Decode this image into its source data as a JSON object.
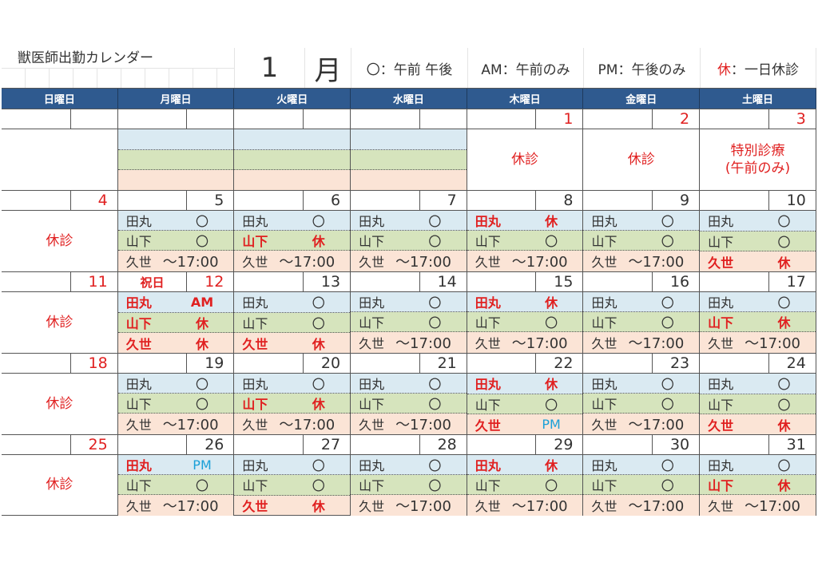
{
  "header": {
    "title": "獣医師出勤カレンダー",
    "month_number": "1",
    "month_label": "月",
    "legend": [
      {
        "text": "〇：午前 午後",
        "red_prefix": ""
      },
      {
        "text": "AM：午前のみ",
        "red_prefix": ""
      },
      {
        "text": "PM：午後のみ",
        "red_prefix": ""
      },
      {
        "text": "：一日休診",
        "red_prefix": "休"
      }
    ]
  },
  "weekdays": [
    "日曜日",
    "月曜日",
    "火曜日",
    "水曜日",
    "木曜日",
    "金曜日",
    "土曜日"
  ],
  "closed_label": "休診",
  "colors": {
    "header": "#2f5a8f",
    "red": "#e02020",
    "pm": "#1aa0d8"
  },
  "first_week": {
    "dates": [
      "",
      "",
      "",
      "",
      "1",
      "2",
      "3"
    ],
    "cells": [
      {
        "type": "blank"
      },
      {
        "type": "empty"
      },
      {
        "type": "empty"
      },
      {
        "type": "empty"
      },
      {
        "type": "closed",
        "text": "休診"
      },
      {
        "type": "closed",
        "text": "休診"
      },
      {
        "type": "closed",
        "text": "特別診療\n(午前のみ)"
      }
    ]
  },
  "weeks": [
    {
      "dates": [
        "4",
        "5",
        "6",
        "7",
        "8",
        "9",
        "10"
      ],
      "labels": [
        "",
        "",
        "",
        "",
        "",
        "",
        ""
      ],
      "days": [
        [
          [
            "田丸",
            "〇",
            ""
          ],
          [
            "山下",
            "〇",
            ""
          ],
          [
            "久世",
            "～17:00",
            ""
          ]
        ],
        [
          [
            "田丸",
            "〇",
            ""
          ],
          [
            "山下",
            "休",
            "r"
          ],
          [
            "久世",
            "～17:00",
            ""
          ]
        ],
        [
          [
            "田丸",
            "〇",
            ""
          ],
          [
            "山下",
            "〇",
            ""
          ],
          [
            "久世",
            "～17:00",
            ""
          ]
        ],
        [
          [
            "田丸",
            "休",
            "r"
          ],
          [
            "山下",
            "〇",
            ""
          ],
          [
            "久世",
            "～17:00",
            ""
          ]
        ],
        [
          [
            "田丸",
            "〇",
            ""
          ],
          [
            "山下",
            "〇",
            ""
          ],
          [
            "久世",
            "～17:00",
            ""
          ]
        ],
        [
          [
            "田丸",
            "〇",
            ""
          ],
          [
            "山下",
            "〇",
            ""
          ],
          [
            "久世",
            "休",
            "r"
          ]
        ]
      ]
    },
    {
      "dates": [
        "11",
        "12",
        "13",
        "14",
        "15",
        "16",
        "17"
      ],
      "labels": [
        "",
        "祝日",
        "",
        "",
        "",
        "",
        ""
      ],
      "days": [
        [
          [
            "田丸",
            "AM",
            "r"
          ],
          [
            "山下",
            "休",
            "r"
          ],
          [
            "久世",
            "休",
            "r"
          ]
        ],
        [
          [
            "田丸",
            "〇",
            ""
          ],
          [
            "山下",
            "〇",
            ""
          ],
          [
            "久世",
            "休",
            "r"
          ]
        ],
        [
          [
            "田丸",
            "〇",
            ""
          ],
          [
            "山下",
            "〇",
            ""
          ],
          [
            "久世",
            "～17:00",
            ""
          ]
        ],
        [
          [
            "田丸",
            "休",
            "r"
          ],
          [
            "山下",
            "〇",
            ""
          ],
          [
            "久世",
            "～17:00",
            ""
          ]
        ],
        [
          [
            "田丸",
            "〇",
            ""
          ],
          [
            "山下",
            "〇",
            ""
          ],
          [
            "久世",
            "～17:00",
            ""
          ]
        ],
        [
          [
            "田丸",
            "〇",
            ""
          ],
          [
            "山下",
            "休",
            "r"
          ],
          [
            "久世",
            "～17:00",
            ""
          ]
        ]
      ]
    },
    {
      "dates": [
        "18",
        "19",
        "20",
        "21",
        "22",
        "23",
        "24"
      ],
      "labels": [
        "",
        "",
        "",
        "",
        "",
        "",
        ""
      ],
      "days": [
        [
          [
            "田丸",
            "〇",
            ""
          ],
          [
            "山下",
            "〇",
            ""
          ],
          [
            "久世",
            "～17:00",
            ""
          ]
        ],
        [
          [
            "田丸",
            "〇",
            ""
          ],
          [
            "山下",
            "休",
            "r"
          ],
          [
            "久世",
            "～17:00",
            ""
          ]
        ],
        [
          [
            "田丸",
            "〇",
            ""
          ],
          [
            "山下",
            "〇",
            ""
          ],
          [
            "久世",
            "～17:00",
            ""
          ]
        ],
        [
          [
            "田丸",
            "休",
            "r"
          ],
          [
            "山下",
            "〇",
            ""
          ],
          [
            "久世",
            "PM",
            "b"
          ]
        ],
        [
          [
            "田丸",
            "〇",
            ""
          ],
          [
            "山下",
            "〇",
            ""
          ],
          [
            "久世",
            "～17:00",
            ""
          ]
        ],
        [
          [
            "田丸",
            "〇",
            ""
          ],
          [
            "山下",
            "〇",
            ""
          ],
          [
            "久世",
            "休",
            "r"
          ]
        ]
      ]
    },
    {
      "dates": [
        "25",
        "26",
        "27",
        "28",
        "29",
        "30",
        "31"
      ],
      "labels": [
        "",
        "",
        "",
        "",
        "",
        "",
        ""
      ],
      "days": [
        [
          [
            "田丸",
            "PM",
            "b"
          ],
          [
            "山下",
            "〇",
            ""
          ],
          [
            "久世",
            "～17:00",
            ""
          ]
        ],
        [
          [
            "田丸",
            "〇",
            ""
          ],
          [
            "山下",
            "〇",
            ""
          ],
          [
            "久世",
            "休",
            "r"
          ]
        ],
        [
          [
            "田丸",
            "〇",
            ""
          ],
          [
            "山下",
            "〇",
            ""
          ],
          [
            "久世",
            "～17:00",
            ""
          ]
        ],
        [
          [
            "田丸",
            "休",
            "r"
          ],
          [
            "山下",
            "〇",
            ""
          ],
          [
            "久世",
            "～17:00",
            ""
          ]
        ],
        [
          [
            "田丸",
            "〇",
            ""
          ],
          [
            "山下",
            "〇",
            ""
          ],
          [
            "久世",
            "～17:00",
            ""
          ]
        ],
        [
          [
            "田丸",
            "〇",
            ""
          ],
          [
            "山下",
            "休",
            "r"
          ],
          [
            "久世",
            "～17:00",
            ""
          ]
        ]
      ]
    }
  ]
}
